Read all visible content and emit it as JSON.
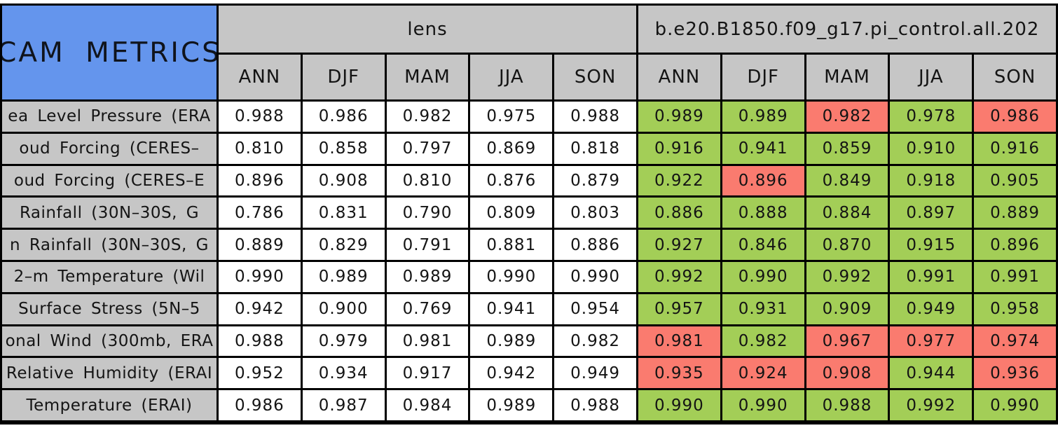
{
  "colors": {
    "title_bg": "#6495ED",
    "header_bg": "#C6C6C6",
    "good_bg": "#A3CE57",
    "bad_bg": "#FA7B6F",
    "neutral_bg": "#FFFFFF",
    "border": "#000000"
  },
  "chart_data": {
    "type": "table",
    "title": "CAM METRICS",
    "column_groups": [
      {
        "label": "lens",
        "columns": [
          "ANN",
          "DJF",
          "MAM",
          "JJA",
          "SON"
        ]
      },
      {
        "label": "b.e20.B1850.f09_g17.pi_control.all.202",
        "columns": [
          "ANN",
          "DJF",
          "MAM",
          "JJA",
          "SON"
        ]
      }
    ],
    "cell_semantics": {
      "good": "green cell — case value better than lens baseline",
      "bad": "red cell — case value worse than lens baseline",
      "neutral": "white cell — baseline lens value"
    },
    "rows": [
      {
        "label": "ea Level Pressure (ERA",
        "lens_values": [
          "0.988",
          "0.986",
          "0.982",
          "0.975",
          "0.988"
        ],
        "case_values": [
          "0.989",
          "0.989",
          "0.982",
          "0.978",
          "0.986"
        ],
        "case_status": [
          "good",
          "good",
          "bad",
          "good",
          "bad"
        ]
      },
      {
        "label": "oud Forcing (CERES–",
        "lens_values": [
          "0.810",
          "0.858",
          "0.797",
          "0.869",
          "0.818"
        ],
        "case_values": [
          "0.916",
          "0.941",
          "0.859",
          "0.910",
          "0.916"
        ],
        "case_status": [
          "good",
          "good",
          "good",
          "good",
          "good"
        ]
      },
      {
        "label": "oud Forcing (CERES–E",
        "lens_values": [
          "0.896",
          "0.908",
          "0.810",
          "0.876",
          "0.879"
        ],
        "case_values": [
          "0.922",
          "0.896",
          "0.849",
          "0.918",
          "0.905"
        ],
        "case_status": [
          "good",
          "bad",
          "good",
          "good",
          "good"
        ]
      },
      {
        "label": "Rainfall (30N–30S, G",
        "lens_values": [
          "0.786",
          "0.831",
          "0.790",
          "0.809",
          "0.803"
        ],
        "case_values": [
          "0.886",
          "0.888",
          "0.884",
          "0.897",
          "0.889"
        ],
        "case_status": [
          "good",
          "good",
          "good",
          "good",
          "good"
        ]
      },
      {
        "label": "n Rainfall (30N–30S, G",
        "lens_values": [
          "0.889",
          "0.829",
          "0.791",
          "0.881",
          "0.886"
        ],
        "case_values": [
          "0.927",
          "0.846",
          "0.870",
          "0.915",
          "0.896"
        ],
        "case_status": [
          "good",
          "good",
          "good",
          "good",
          "good"
        ]
      },
      {
        "label": "2–m Temperature (Wil",
        "lens_values": [
          "0.990",
          "0.989",
          "0.989",
          "0.990",
          "0.990"
        ],
        "case_values": [
          "0.992",
          "0.990",
          "0.992",
          "0.991",
          "0.991"
        ],
        "case_status": [
          "good",
          "good",
          "good",
          "good",
          "good"
        ]
      },
      {
        "label": "Surface Stress (5N–5",
        "lens_values": [
          "0.942",
          "0.900",
          "0.769",
          "0.941",
          "0.954"
        ],
        "case_values": [
          "0.957",
          "0.931",
          "0.909",
          "0.949",
          "0.958"
        ],
        "case_status": [
          "good",
          "good",
          "good",
          "good",
          "good"
        ]
      },
      {
        "label": "onal Wind (300mb, ERA",
        "lens_values": [
          "0.988",
          "0.979",
          "0.981",
          "0.989",
          "0.982"
        ],
        "case_values": [
          "0.981",
          "0.982",
          "0.967",
          "0.977",
          "0.974"
        ],
        "case_status": [
          "bad",
          "good",
          "bad",
          "bad",
          "bad"
        ]
      },
      {
        "label": "Relative Humidity (ERAI",
        "lens_values": [
          "0.952",
          "0.934",
          "0.917",
          "0.942",
          "0.949"
        ],
        "case_values": [
          "0.935",
          "0.924",
          "0.908",
          "0.944",
          "0.936"
        ],
        "case_status": [
          "bad",
          "bad",
          "bad",
          "good",
          "bad"
        ]
      },
      {
        "label": "Temperature (ERAI)",
        "lens_values": [
          "0.986",
          "0.987",
          "0.984",
          "0.989",
          "0.988"
        ],
        "case_values": [
          "0.990",
          "0.990",
          "0.988",
          "0.992",
          "0.990"
        ],
        "case_status": [
          "good",
          "good",
          "good",
          "good",
          "good"
        ]
      }
    ]
  }
}
